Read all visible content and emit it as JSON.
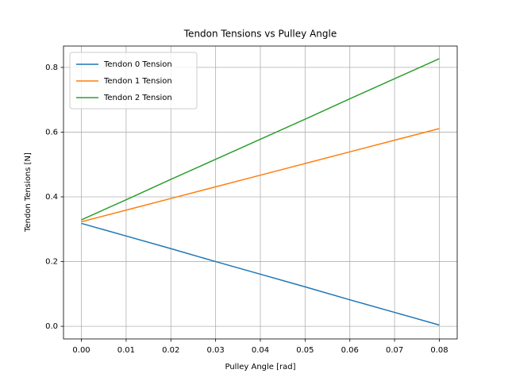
{
  "chart_data": {
    "type": "line",
    "title": "Tendon Tensions vs Pulley Angle",
    "x_label": "Pulley Angle [rad]",
    "y_label": "Tendon Tensions [N]",
    "x": [
      0,
      0.01,
      0.02,
      0.03,
      0.04,
      0.05,
      0.06,
      0.07,
      0.08
    ],
    "series": [
      {
        "name": "Tendon 0 Tension",
        "color": "#1f77b4",
        "values": [
          0.318,
          0.279,
          0.24,
          0.2,
          0.161,
          0.122,
          0.082,
          0.043,
          0.004
        ]
      },
      {
        "name": "Tendon 1 Tension",
        "color": "#ff7f0e",
        "values": [
          0.323,
          0.359,
          0.395,
          0.431,
          0.467,
          0.503,
          0.539,
          0.575,
          0.611
        ]
      },
      {
        "name": "Tendon 2 Tension",
        "color": "#2ca02c",
        "values": [
          0.329,
          0.391,
          0.454,
          0.516,
          0.578,
          0.64,
          0.703,
          0.765,
          0.827
        ]
      }
    ],
    "xlim": [
      -0.004,
      0.084
    ],
    "ylim": [
      -0.039,
      0.866
    ],
    "xticks": [
      {
        "value": 0,
        "label": "0.00"
      },
      {
        "value": 0.01,
        "label": "0.01"
      },
      {
        "value": 0.02,
        "label": "0.02"
      },
      {
        "value": 0.03,
        "label": "0.03"
      },
      {
        "value": 0.04,
        "label": "0.04"
      },
      {
        "value": 0.05,
        "label": "0.05"
      },
      {
        "value": 0.06,
        "label": "0.06"
      },
      {
        "value": 0.07,
        "label": "0.07"
      },
      {
        "value": 0.08,
        "label": "0.08"
      }
    ],
    "yticks": [
      {
        "value": 0,
        "label": "0.0"
      },
      0.2,
      0.4,
      0.6,
      0.8
    ],
    "grid": true,
    "legend": "upper-left"
  }
}
